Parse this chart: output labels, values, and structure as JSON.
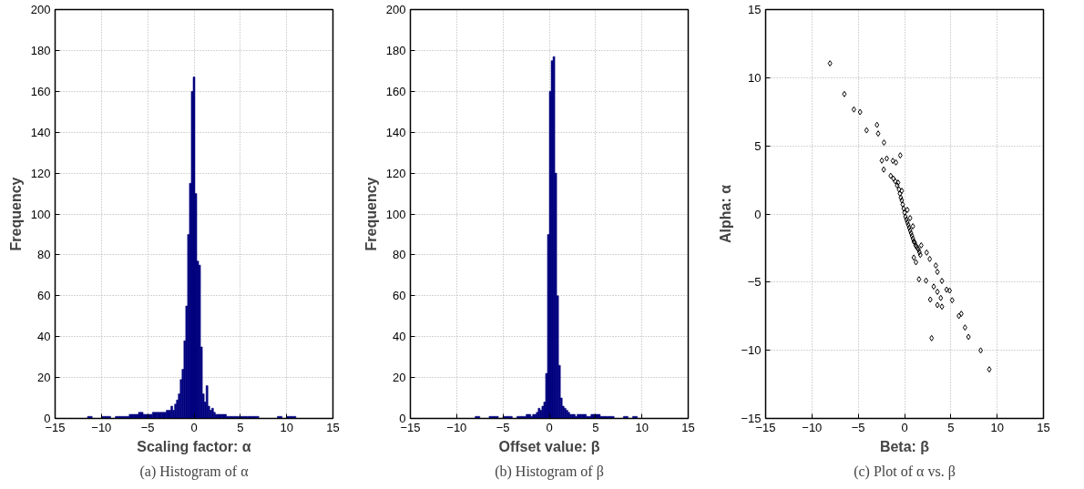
{
  "chart_data": [
    {
      "type": "histogram",
      "xlabel": "Scaling factor: α",
      "ylabel": "Frequency",
      "annotations": [
        "(a) Histogram of α"
      ],
      "color": "#00007f",
      "grid": true,
      "bins": [
        -11.5,
        -11,
        -10.5,
        -10,
        -9.5,
        -9,
        -8.5,
        -8,
        -7.5,
        -7,
        -6.5,
        -6,
        -5.5,
        -5,
        -4.5,
        -4,
        -3.5,
        -3,
        -2.5,
        -2.3,
        -2.1,
        -1.9,
        -1.7,
        -1.5,
        -1.3,
        -1.1,
        -0.9,
        -0.7,
        -0.5,
        -0.3,
        -0.1,
        0.1,
        0.3,
        0.5,
        0.7,
        0.9,
        1.1,
        1.3,
        1.5,
        1.7,
        1.9,
        2.1,
        2.3,
        2.5,
        3,
        3.5,
        4,
        4.5,
        5,
        5.5,
        6,
        6.5,
        7,
        7.5,
        8,
        8.5,
        9,
        9.5,
        10,
        10.5,
        11,
        11.5
      ],
      "values": [
        1,
        0,
        0,
        1,
        1,
        0,
        1,
        1,
        1,
        2,
        2,
        3,
        2,
        2,
        3,
        3,
        3,
        4,
        6,
        4,
        7,
        9,
        12,
        19,
        24,
        38,
        55,
        90,
        115,
        160,
        167,
        110,
        77,
        75,
        35,
        12,
        8,
        16,
        6,
        4,
        5,
        3,
        2,
        2,
        2,
        1,
        1,
        1,
        1,
        1,
        1,
        1,
        0,
        0,
        0,
        0,
        1,
        0,
        1,
        1,
        0
      ],
      "xlim": [
        -15,
        15
      ],
      "ylim": [
        0,
        200
      ],
      "xticks": [
        -15,
        -10,
        -5,
        0,
        5,
        10,
        15
      ],
      "yticks": [
        0,
        20,
        40,
        60,
        80,
        100,
        120,
        140,
        160,
        180,
        200
      ]
    },
    {
      "type": "histogram",
      "xlabel": "Offset value: β",
      "ylabel": "Frequency",
      "annotations": [
        "(b) Histogram of β"
      ],
      "color": "#00007f",
      "grid": true,
      "bins": [
        -8,
        -7.5,
        -7,
        -6.5,
        -6,
        -5.5,
        -5,
        -4.5,
        -4,
        -3.5,
        -3,
        -2.5,
        -2,
        -1.8,
        -1.6,
        -1.4,
        -1.2,
        -1,
        -0.8,
        -0.6,
        -0.4,
        -0.2,
        0,
        0.2,
        0.4,
        0.6,
        0.8,
        1,
        1.2,
        1.4,
        1.6,
        1.8,
        2,
        2.2,
        2.4,
        2.6,
        2.8,
        3,
        3.5,
        4,
        4.5,
        5,
        5.5,
        6,
        6.5,
        7,
        7.5,
        8,
        8.5,
        9,
        9.5
      ],
      "values": [
        1,
        0,
        0,
        1,
        1,
        0,
        1,
        1,
        0,
        1,
        1,
        2,
        1,
        2,
        2,
        3,
        5,
        4,
        6,
        8,
        22,
        90,
        160,
        175,
        177,
        120,
        60,
        26,
        10,
        6,
        5,
        4,
        3,
        2,
        2,
        2,
        1,
        2,
        2,
        1,
        2,
        2,
        1,
        1,
        1,
        0,
        0,
        1,
        0,
        1
      ],
      "xlim": [
        -15,
        15
      ],
      "ylim": [
        0,
        200
      ],
      "xticks": [
        -15,
        -10,
        -5,
        0,
        5,
        10,
        15
      ],
      "yticks": [
        0,
        20,
        40,
        60,
        80,
        100,
        120,
        140,
        160,
        180,
        200
      ]
    },
    {
      "type": "scatter",
      "xlabel": "Beta: β",
      "ylabel": "Alpha: α",
      "annotations": [
        "(c) Plot of α vs. β"
      ],
      "color": "#000000",
      "marker": "diamond",
      "grid": true,
      "x": [
        -8.05,
        -6.5,
        -5.47,
        -4.8,
        -4.1,
        -2.98,
        -2.85,
        -2.22,
        -2.45,
        -2.25,
        -1.92,
        -0.46,
        -1.26,
        -0.93,
        -1.5,
        -1.2,
        -1.0,
        -0.8,
        -0.6,
        -0.5,
        -0.4,
        -0.3,
        -0.2,
        -0.1,
        0,
        0.1,
        0.2,
        0.3,
        0.4,
        0.5,
        0.6,
        0.7,
        0.8,
        0.9,
        1.0,
        1.1,
        1.2,
        1.3,
        1.4,
        1.5,
        1.6,
        1.7,
        1.8,
        0.3,
        0.6,
        0.9,
        -0.3,
        -0.7,
        1.0,
        1.23,
        1.56,
        2.32,
        2.39,
        2.72,
        3.15,
        3.55,
        2.78,
        3.55,
        4.04,
        3.91,
        3.38,
        3.55,
        4.04,
        4.54,
        4.87,
        5.14,
        5.87,
        6.13,
        6.53,
        6.9,
        8.22,
        9.15,
        2.92
      ],
      "values": [
        11.05,
        8.8,
        7.67,
        7.48,
        6.14,
        6.54,
        5.9,
        5.24,
        3.92,
        3.26,
        4.07,
        4.3,
        3.9,
        3.78,
        2.8,
        2.6,
        2.4,
        2.1,
        1.8,
        1.5,
        1.2,
        1.0,
        0.7,
        0.4,
        0.1,
        -0.2,
        -0.4,
        -0.6,
        -0.8,
        -1.0,
        -1.2,
        -1.4,
        -1.6,
        -1.8,
        -2.0,
        -2.1,
        -2.3,
        -2.4,
        -2.5,
        -2.6,
        -2.8,
        -3.0,
        -2.3,
        0.3,
        -0.3,
        -0.9,
        1.7,
        2.3,
        -3.2,
        -3.54,
        -4.79,
        -4.89,
        -2.83,
        -3.3,
        -5.33,
        -5.71,
        -6.28,
        -6.68,
        -6.8,
        -6.16,
        -3.78,
        -4.25,
        -4.91,
        -5.55,
        -5.62,
        -6.33,
        -7.48,
        -7.32,
        -8.33,
        -9.02,
        -10.01,
        -11.4,
        -9.11
      ],
      "xlim": [
        -15,
        15
      ],
      "ylim": [
        -15,
        15
      ],
      "xticks": [
        -15,
        -10,
        -5,
        0,
        5,
        10,
        15
      ],
      "yticks": [
        -15,
        -10,
        -5,
        0,
        5,
        10,
        15
      ]
    }
  ]
}
